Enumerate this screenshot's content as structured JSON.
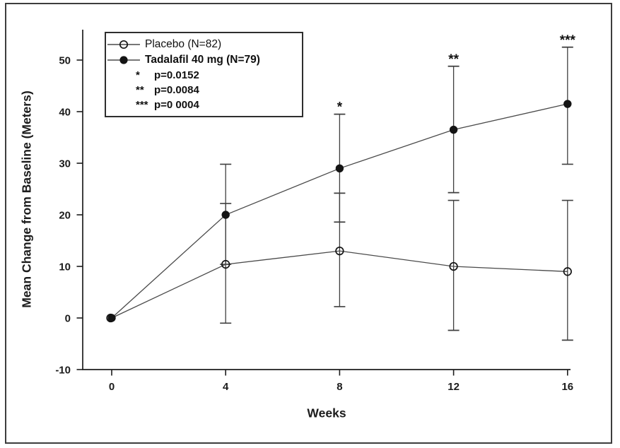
{
  "axes": {
    "x_title": "Weeks",
    "y_title": "Mean Change from Baseline (Meters)"
  },
  "legend": {
    "items": [
      {
        "label": "Placebo (N=82)",
        "marker": "open-circle"
      },
      {
        "label": "Tadalafil 40 mg (N=79)",
        "marker": "filled-circle"
      }
    ],
    "pvalues": [
      {
        "stars": "*",
        "text": "p=0.0152"
      },
      {
        "stars": "**",
        "text": "p=0.0084"
      },
      {
        "stars": "***",
        "text": "p=0 0004"
      }
    ]
  },
  "colors": {
    "axis": "#1c1c1c",
    "line": "#4a4a4a",
    "marker": "#141414",
    "error_bar": "#3f3f3f",
    "frame_border": "#3d3d3d"
  },
  "chart_data": {
    "type": "line",
    "title": "",
    "xlabel": "Weeks",
    "ylabel": "Mean Change from Baseline (Meters)",
    "x": [
      0,
      4,
      8,
      12,
      16
    ],
    "x_ticks": [
      "0",
      "4",
      "8",
      "12",
      "16"
    ],
    "y_tick_values": [
      -10,
      0,
      10,
      20,
      30,
      40,
      50
    ],
    "y_ticks": [
      "-10",
      "0",
      "10",
      "20",
      "30",
      "40",
      "50"
    ],
    "xlim": [
      -1,
      16.2
    ],
    "ylim": [
      -10,
      56
    ],
    "grid": false,
    "legend_position": "top-left",
    "series": [
      {
        "name": "Placebo (N=82)",
        "slug": "placebo",
        "marker": "open-circle",
        "values": [
          0,
          10.4,
          13,
          10,
          9
        ],
        "err_lo": [
          null,
          -1.0,
          2.2,
          -2.4,
          -4.3
        ],
        "err_hi": [
          null,
          22.2,
          24.2,
          22.8,
          22.8
        ]
      },
      {
        "name": "Tadalafil 40 mg (N=79)",
        "slug": "tadalafil-40mg",
        "marker": "filled-circle",
        "values": [
          0,
          20,
          29,
          36.5,
          41.5
        ],
        "err_lo": [
          null,
          10.4,
          18.6,
          24.3,
          29.8
        ],
        "err_hi": [
          null,
          29.8,
          39.5,
          48.8,
          52.5
        ]
      }
    ],
    "significance": [
      {
        "x": 8,
        "label": "*"
      },
      {
        "x": 12,
        "label": "**"
      },
      {
        "x": 16,
        "label": "***"
      }
    ]
  }
}
